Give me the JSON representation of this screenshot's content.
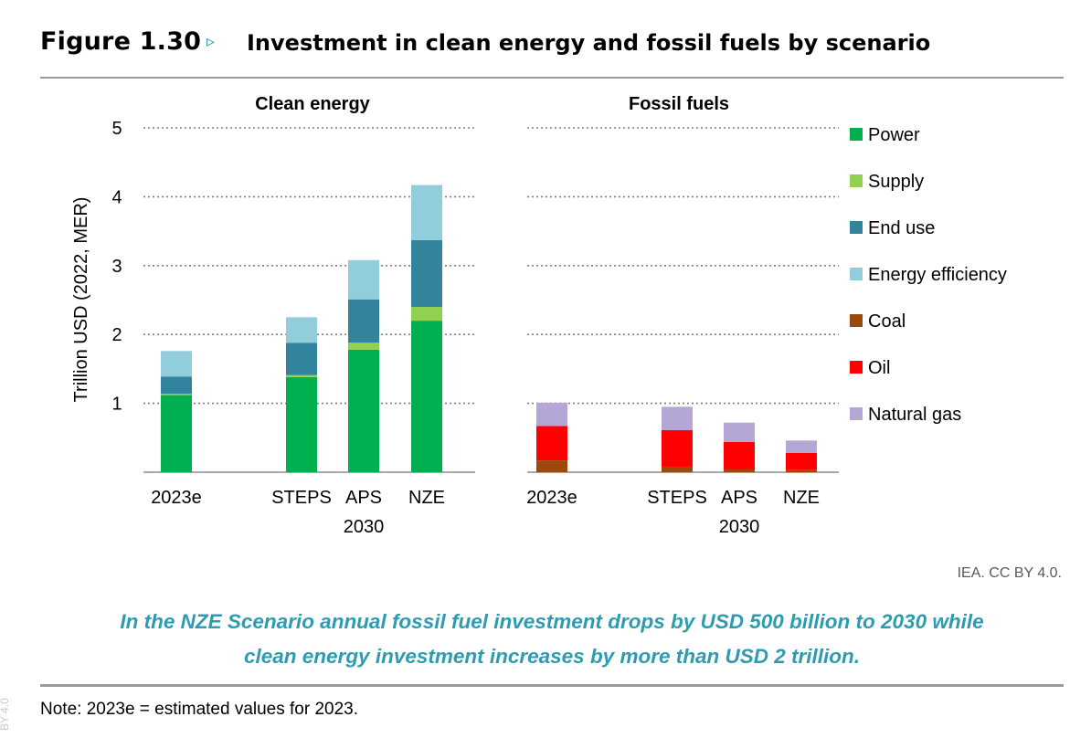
{
  "figure": {
    "number": "Figure 1.30",
    "arrow": "▹",
    "title": "Investment in clean energy and fossil fuels by scenario",
    "credit": "IEA. CC BY 4.0.",
    "caption_line1": "In the NZE Scenario annual fossil fuel investment drops by USD 500 billion to 2030 while",
    "caption_line2": "clean energy investment increases by more than USD 2 trillion.",
    "note": "Note: 2023e = estimated values for 2023.",
    "watermark": "BY 4.0"
  },
  "colors": {
    "Power": "#00b050",
    "Supply": "#92d050",
    "End use": "#31849b",
    "Energy efficiency": "#92cddc",
    "Coal": "#9c4a0c",
    "Oil": "#ff0000",
    "Natural gas": "#b4a7d6"
  },
  "chart_data": {
    "type": "bar",
    "stacked": true,
    "ylabel": "Trillion USD (2022, MER)",
    "ylim": [
      0,
      5
    ],
    "yticks": [
      1,
      2,
      3,
      4,
      5
    ],
    "grid": true,
    "legend_position": "right",
    "group_label_2030": "2030",
    "panels": [
      {
        "title": "Clean energy",
        "categories": [
          "2023e",
          "STEPS",
          "APS",
          "NZE"
        ],
        "series": [
          {
            "name": "Power",
            "values": [
              1.12,
              1.38,
              1.78,
              2.2
            ]
          },
          {
            "name": "Supply",
            "values": [
              0.02,
              0.03,
              0.1,
              0.2
            ]
          },
          {
            "name": "End use",
            "values": [
              0.25,
              0.47,
              0.63,
              0.97
            ]
          },
          {
            "name": "Energy efficiency",
            "values": [
              0.37,
              0.37,
              0.57,
              0.8
            ]
          }
        ]
      },
      {
        "title": "Fossil fuels",
        "categories": [
          "2023e",
          "STEPS",
          "APS",
          "NZE"
        ],
        "series": [
          {
            "name": "Coal",
            "values": [
              0.17,
              0.08,
              0.04,
              0.03
            ]
          },
          {
            "name": "Oil",
            "values": [
              0.5,
              0.53,
              0.4,
              0.25
            ]
          },
          {
            "name": "Natural gas",
            "values": [
              0.34,
              0.34,
              0.28,
              0.18
            ]
          }
        ]
      }
    ],
    "legend": [
      "Power",
      "Supply",
      "End use",
      "Energy efficiency",
      "Coal",
      "Oil",
      "Natural gas"
    ]
  }
}
